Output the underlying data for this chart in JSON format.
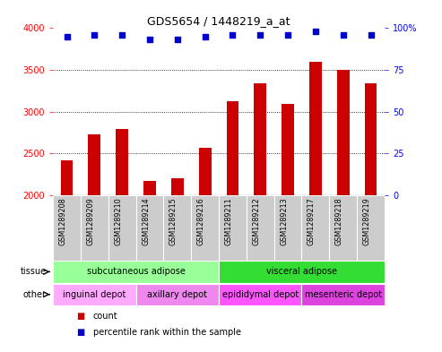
{
  "title": "GDS5654 / 1448219_a_at",
  "samples": [
    "GSM1289208",
    "GSM1289209",
    "GSM1289210",
    "GSM1289214",
    "GSM1289215",
    "GSM1289216",
    "GSM1289211",
    "GSM1289212",
    "GSM1289213",
    "GSM1289217",
    "GSM1289218",
    "GSM1289219"
  ],
  "counts": [
    2420,
    2730,
    2790,
    2170,
    2200,
    2570,
    3120,
    3340,
    3090,
    3600,
    3500,
    3340
  ],
  "percentiles": [
    95,
    96,
    96,
    93,
    93,
    95,
    96,
    96,
    96,
    98,
    96,
    96
  ],
  "ylim_left": [
    2000,
    4000
  ],
  "ylim_right": [
    0,
    100
  ],
  "yticks_left": [
    2000,
    2500,
    3000,
    3500,
    4000
  ],
  "yticks_right": [
    0,
    25,
    50,
    75,
    100
  ],
  "bar_color": "#cc0000",
  "dot_color": "#0000cc",
  "tissue_groups": [
    {
      "label": "subcutaneous adipose",
      "start": 0,
      "end": 6,
      "color": "#99ff99"
    },
    {
      "label": "visceral adipose",
      "start": 6,
      "end": 12,
      "color": "#33dd33"
    }
  ],
  "other_groups": [
    {
      "label": "inguinal depot",
      "start": 0,
      "end": 3,
      "color": "#ffaaff"
    },
    {
      "label": "axillary depot",
      "start": 3,
      "end": 6,
      "color": "#ee88ee"
    },
    {
      "label": "epididymal depot",
      "start": 6,
      "end": 9,
      "color": "#ff55ff"
    },
    {
      "label": "mesenteric depot",
      "start": 9,
      "end": 12,
      "color": "#dd44dd"
    }
  ],
  "background_color": "#ffffff",
  "sample_bg_color": "#cccccc",
  "chart_bg_color": "#ffffff"
}
